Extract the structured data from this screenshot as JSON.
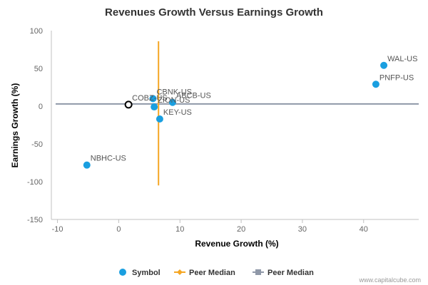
{
  "chart_data": {
    "type": "scatter",
    "title": "Revenues Growth Versus Earnings Growth",
    "xlabel": "Revenue Growth (%)",
    "ylabel": "Earnings Growth (%)",
    "xlim": [
      -11,
      49
    ],
    "ylim": [
      -150,
      100
    ],
    "xticks": [
      -10,
      0,
      10,
      20,
      30,
      40
    ],
    "yticks": [
      100,
      50,
      0,
      -50,
      -100,
      -150
    ],
    "grid": false,
    "points": [
      {
        "label": "WAL-US",
        "x": 43.3,
        "y": 54,
        "highlight": false
      },
      {
        "label": "PNFP-US",
        "x": 42.0,
        "y": 29,
        "highlight": false
      },
      {
        "label": "CBNK-US",
        "x": 5.6,
        "y": 10,
        "highlight": false
      },
      {
        "label": "ABCB-US",
        "x": 8.8,
        "y": 5,
        "highlight": false
      },
      {
        "label": "ZION-US",
        "x": 5.8,
        "y": -1,
        "highlight": false
      },
      {
        "label": "KEY-US",
        "x": 6.7,
        "y": -17,
        "highlight": false
      },
      {
        "label": "NBHC-US",
        "x": -5.2,
        "y": -78,
        "highlight": false
      },
      {
        "label": "COBZ-US",
        "x": 1.6,
        "y": 2,
        "highlight": true
      }
    ],
    "peer_median_x": 6.5,
    "peer_median_x_range": [
      -105,
      86
    ],
    "peer_median_y": 3,
    "legend": {
      "placement": "bottom",
      "items": [
        {
          "label": "Symbol",
          "color": "#1a9fe0",
          "marker": "circle"
        },
        {
          "label": "Peer Median",
          "color": "#f5a623",
          "marker": "diamond-line"
        },
        {
          "label": "Peer Median",
          "color": "#8f98a8",
          "marker": "square-line"
        }
      ]
    },
    "colors": {
      "symbol": "#1a9fe0",
      "median_vertical": "#f5a623",
      "median_horizontal": "#8f98a8",
      "highlight_stroke": "#000000"
    }
  },
  "credit": "www.capitalcube.com"
}
